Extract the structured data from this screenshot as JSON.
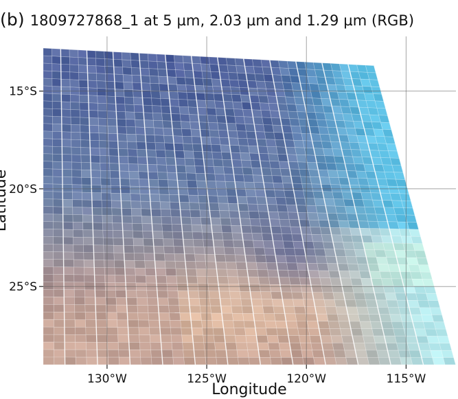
{
  "figure": {
    "panel": "(b)",
    "title": "1809727868_1 at 5 µm, 2.03 µm and 1.29 µm (RGB)",
    "xlabel": "Longitude",
    "ylabel": "Latitude"
  },
  "chart_data": {
    "type": "heatmap",
    "title": "1809727868_1 at 5 µm, 2.03 µm and 1.29 µm (RGB)",
    "xlabel": "Longitude",
    "ylabel": "Latitude",
    "xlim": [
      -133.2,
      -112.5
    ],
    "ylim": [
      -29.0,
      -12.2
    ],
    "xticks": [
      -130,
      -125,
      -120,
      -115
    ],
    "xtick_labels": [
      "130°W",
      "125°W",
      "120°W",
      "115°W"
    ],
    "yticks": [
      -15,
      -20,
      -25
    ],
    "ytick_labels": [
      "15°S",
      "20°S",
      "25°S"
    ],
    "grid": true,
    "swath_corners": {
      "top_left": [
        -133.2,
        -12.8
      ],
      "top_right": [
        -116.6,
        -13.7
      ],
      "bottom_right": [
        -112.5,
        -29.0
      ],
      "bottom_left": [
        -133.2,
        -29.0
      ]
    },
    "colors": {
      "deep_blue": "#4b5c9c",
      "mid_blue": "#6f88ab",
      "cyan": "#5fc2e6",
      "pale_cyan": "#b4e8ec",
      "salmon": "#d29c85",
      "peach": "#e7c2a4",
      "rose_gray": "#a88a8e",
      "mint": "#c2ead8"
    }
  }
}
